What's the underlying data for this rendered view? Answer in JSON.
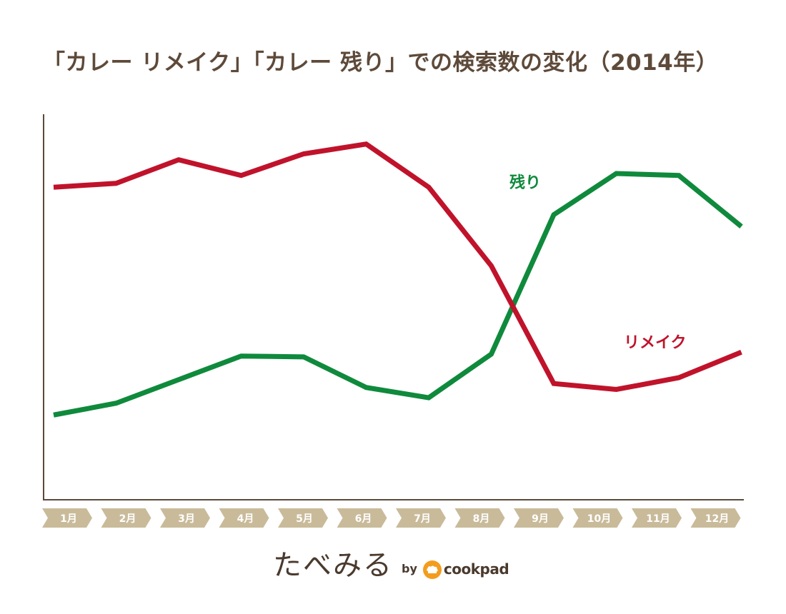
{
  "title": "「カレー リメイク」「カレー 残り」での検索数の変化（2014年）",
  "chart_data": {
    "type": "line",
    "title": "「カレー リメイク」「カレー 残り」での検索数の変化（2014年）",
    "categories": [
      "1月",
      "2月",
      "3月",
      "4月",
      "5月",
      "6月",
      "7月",
      "8月",
      "9月",
      "10月",
      "11月",
      "12月"
    ],
    "xlabel": "",
    "ylabel": "",
    "y_range": [
      0,
      100
    ],
    "grid": false,
    "series": [
      {
        "name": "リメイク",
        "color": "#c0132b",
        "values": [
          80.5,
          81.5,
          87.5,
          83.5,
          89,
          91.5,
          80.5,
          60.5,
          30.5,
          29,
          32,
          38.5
        ]
      },
      {
        "name": "残り",
        "color": "#0f8a3c",
        "values": [
          22.5,
          25.5,
          31.5,
          37.5,
          37.3,
          29.5,
          26.9,
          38,
          73.5,
          84,
          83.5,
          70.5
        ]
      }
    ]
  },
  "footer": {
    "brand": "たべみる",
    "by": "by",
    "partner": "cookpad"
  },
  "colors": {
    "axis": "#5a4a3a",
    "month_tag": "#c9bb9a",
    "month_text": "#ffffff",
    "title": "#5e4a3a",
    "cookpad_orange": "#f39c1e"
  }
}
